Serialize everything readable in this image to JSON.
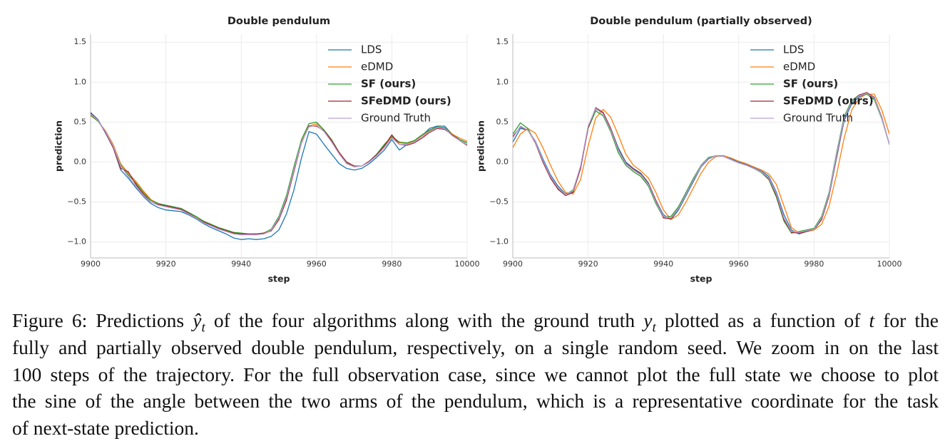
{
  "chart_data": [
    {
      "type": "line",
      "title": "Double pendulum",
      "x_label": "step",
      "y_label": "prediction",
      "x": [
        9900,
        9902,
        9904,
        9906,
        9908,
        9910,
        9912,
        9914,
        9916,
        9918,
        9920,
        9922,
        9924,
        9926,
        9928,
        9930,
        9932,
        9934,
        9936,
        9938,
        9940,
        9942,
        9944,
        9946,
        9948,
        9950,
        9952,
        9954,
        9956,
        9958,
        9960,
        9962,
        9964,
        9966,
        9968,
        9970,
        9972,
        9974,
        9976,
        9978,
        9980,
        9982,
        9984,
        9986,
        9988,
        9990,
        9992,
        9994,
        9996,
        9998,
        10000
      ],
      "series": [
        {
          "name": "LDS",
          "color": "#1f77b4",
          "bold": false,
          "values": [
            0.62,
            0.53,
            0.36,
            0.18,
            -0.1,
            -0.2,
            -0.32,
            -0.43,
            -0.52,
            -0.57,
            -0.6,
            -0.61,
            -0.62,
            -0.66,
            -0.71,
            -0.77,
            -0.82,
            -0.86,
            -0.9,
            -0.95,
            -0.97,
            -0.96,
            -0.97,
            -0.96,
            -0.93,
            -0.85,
            -0.65,
            -0.35,
            0.05,
            0.38,
            0.35,
            0.22,
            0.1,
            -0.02,
            -0.08,
            -0.1,
            -0.08,
            -0.02,
            0.06,
            0.15,
            0.28,
            0.15,
            0.22,
            0.25,
            0.33,
            0.42,
            0.45,
            0.45,
            0.35,
            0.28,
            0.24
          ]
        },
        {
          "name": "eDMD",
          "color": "#ff7f0e",
          "bold": false,
          "values": [
            0.58,
            0.51,
            0.39,
            0.22,
            -0.02,
            -0.14,
            -0.24,
            -0.36,
            -0.47,
            -0.52,
            -0.55,
            -0.57,
            -0.59,
            -0.64,
            -0.69,
            -0.74,
            -0.79,
            -0.83,
            -0.86,
            -0.89,
            -0.9,
            -0.91,
            -0.91,
            -0.9,
            -0.86,
            -0.72,
            -0.46,
            -0.1,
            0.26,
            0.45,
            0.48,
            0.4,
            0.27,
            0.11,
            -0.02,
            -0.06,
            -0.05,
            0.0,
            0.09,
            0.2,
            0.31,
            0.24,
            0.23,
            0.26,
            0.33,
            0.39,
            0.44,
            0.43,
            0.35,
            0.3,
            0.26
          ]
        },
        {
          "name": "SF (ours)",
          "color": "#2ca02c",
          "bold": true,
          "values": [
            0.59,
            0.51,
            0.38,
            0.2,
            -0.04,
            -0.16,
            -0.26,
            -0.38,
            -0.48,
            -0.52,
            -0.54,
            -0.56,
            -0.58,
            -0.63,
            -0.68,
            -0.74,
            -0.78,
            -0.82,
            -0.85,
            -0.88,
            -0.89,
            -0.9,
            -0.9,
            -0.89,
            -0.84,
            -0.68,
            -0.42,
            -0.06,
            0.28,
            0.48,
            0.5,
            0.4,
            0.28,
            0.12,
            -0.01,
            -0.06,
            -0.05,
            0.01,
            0.1,
            0.22,
            0.32,
            0.25,
            0.24,
            0.27,
            0.34,
            0.4,
            0.44,
            0.43,
            0.34,
            0.28,
            0.24
          ]
        },
        {
          "name": "SFeDMD (ours)",
          "color": "#a4262c",
          "bold": true,
          "values": [
            0.61,
            0.52,
            0.37,
            0.18,
            -0.08,
            -0.12,
            -0.28,
            -0.4,
            -0.5,
            -0.53,
            -0.55,
            -0.57,
            -0.59,
            -0.64,
            -0.7,
            -0.75,
            -0.79,
            -0.83,
            -0.86,
            -0.89,
            -0.9,
            -0.9,
            -0.9,
            -0.89,
            -0.86,
            -0.72,
            -0.48,
            -0.12,
            0.24,
            0.45,
            0.45,
            0.39,
            0.27,
            0.12,
            0.0,
            -0.05,
            -0.05,
            0.01,
            0.09,
            0.2,
            0.34,
            0.22,
            0.21,
            0.24,
            0.3,
            0.37,
            0.42,
            0.41,
            0.34,
            0.27,
            0.21
          ]
        },
        {
          "name": "Ground Truth",
          "color": "#b9a0db",
          "bold": false,
          "values": [
            0.6,
            0.52,
            0.38,
            0.2,
            -0.05,
            -0.18,
            -0.3,
            -0.42,
            -0.5,
            -0.54,
            -0.56,
            -0.58,
            -0.6,
            -0.65,
            -0.7,
            -0.76,
            -0.8,
            -0.84,
            -0.87,
            -0.9,
            -0.91,
            -0.91,
            -0.91,
            -0.9,
            -0.85,
            -0.7,
            -0.45,
            -0.1,
            0.25,
            0.44,
            0.46,
            0.38,
            0.25,
            0.1,
            -0.02,
            -0.06,
            -0.05,
            0.0,
            0.08,
            0.18,
            0.3,
            0.22,
            0.22,
            0.25,
            0.32,
            0.38,
            0.43,
            0.42,
            0.33,
            0.27,
            0.22
          ]
        }
      ],
      "xlim": [
        9900,
        10000
      ],
      "xticks": [
        9900,
        9920,
        9940,
        9960,
        9980,
        10000
      ],
      "ylim": [
        -1.2,
        1.6
      ],
      "yticks": [
        {
          "value": -1,
          "label": "−1.0"
        },
        {
          "value": -0.5,
          "label": "−0.5"
        },
        {
          "value": 0,
          "label": "0.0"
        },
        0.5,
        {
          "value": 1,
          "label": "1.0"
        },
        1.5
      ],
      "grid": true,
      "legend": "upper right"
    },
    {
      "type": "line",
      "title": "Double pendulum (partially observed)",
      "x_label": "step",
      "y_label": "prediction",
      "x": [
        9900,
        9902,
        9904,
        9906,
        9908,
        9910,
        9912,
        9914,
        9916,
        9918,
        9920,
        9922,
        9924,
        9926,
        9928,
        9930,
        9932,
        9934,
        9936,
        9938,
        9940,
        9942,
        9944,
        9946,
        9948,
        9950,
        9952,
        9954,
        9956,
        9958,
        9960,
        9962,
        9964,
        9966,
        9968,
        9970,
        9972,
        9974,
        9976,
        9978,
        9980,
        9982,
        9984,
        9986,
        9988,
        9990,
        9992,
        9994,
        9996,
        9998,
        10000
      ],
      "series": [
        {
          "name": "LDS",
          "color": "#1f77b4",
          "bold": false,
          "values": [
            0.25,
            0.42,
            0.4,
            0.26,
            0.04,
            -0.16,
            -0.3,
            -0.4,
            -0.37,
            -0.08,
            0.44,
            0.66,
            0.62,
            0.42,
            0.18,
            0.0,
            -0.08,
            -0.14,
            -0.26,
            -0.48,
            -0.66,
            -0.72,
            -0.6,
            -0.42,
            -0.24,
            -0.06,
            0.04,
            0.08,
            0.08,
            0.04,
            0.0,
            -0.03,
            -0.07,
            -0.11,
            -0.18,
            -0.38,
            -0.66,
            -0.85,
            -0.9,
            -0.87,
            -0.85,
            -0.72,
            -0.42,
            0.06,
            0.52,
            0.73,
            0.82,
            0.85,
            0.79,
            0.55,
            0.22
          ]
        },
        {
          "name": "eDMD",
          "color": "#ff7f0e",
          "bold": false,
          "values": [
            0.18,
            0.35,
            0.42,
            0.36,
            0.18,
            -0.04,
            -0.24,
            -0.38,
            -0.4,
            -0.22,
            0.2,
            0.55,
            0.66,
            0.56,
            0.34,
            0.1,
            -0.04,
            -0.11,
            -0.2,
            -0.38,
            -0.6,
            -0.72,
            -0.66,
            -0.5,
            -0.32,
            -0.14,
            0.0,
            0.07,
            0.08,
            0.05,
            0.01,
            -0.02,
            -0.06,
            -0.1,
            -0.15,
            -0.28,
            -0.55,
            -0.82,
            -0.89,
            -0.87,
            -0.85,
            -0.78,
            -0.55,
            -0.15,
            0.3,
            0.65,
            0.8,
            0.85,
            0.85,
            0.65,
            0.35
          ]
        },
        {
          "name": "SF (ours)",
          "color": "#2ca02c",
          "bold": true,
          "values": [
            0.35,
            0.49,
            0.42,
            0.24,
            0.0,
            -0.19,
            -0.33,
            -0.41,
            -0.35,
            -0.06,
            0.42,
            0.64,
            0.58,
            0.38,
            0.12,
            -0.04,
            -0.12,
            -0.18,
            -0.3,
            -0.52,
            -0.69,
            -0.68,
            -0.56,
            -0.38,
            -0.2,
            -0.04,
            0.06,
            0.08,
            0.07,
            0.03,
            -0.01,
            -0.04,
            -0.08,
            -0.13,
            -0.22,
            -0.44,
            -0.74,
            -0.89,
            -0.87,
            -0.85,
            -0.83,
            -0.68,
            -0.38,
            0.12,
            0.57,
            0.77,
            0.84,
            0.85,
            0.78,
            0.54,
            0.22
          ]
        },
        {
          "name": "SFeDMD (ours)",
          "color": "#a4262c",
          "bold": true,
          "values": [
            0.32,
            0.44,
            0.4,
            0.24,
            0.0,
            -0.2,
            -0.34,
            -0.42,
            -0.38,
            -0.08,
            0.43,
            0.68,
            0.62,
            0.42,
            0.16,
            -0.01,
            -0.09,
            -0.15,
            -0.27,
            -0.48,
            -0.7,
            -0.71,
            -0.58,
            -0.4,
            -0.22,
            -0.05,
            0.05,
            0.08,
            0.07,
            0.03,
            -0.01,
            -0.04,
            -0.08,
            -0.12,
            -0.21,
            -0.42,
            -0.72,
            -0.88,
            -0.89,
            -0.87,
            -0.84,
            -0.72,
            -0.42,
            0.08,
            0.54,
            0.75,
            0.84,
            0.87,
            0.81,
            0.56,
            0.22
          ]
        },
        {
          "name": "Ground Truth",
          "color": "#b9a0db",
          "bold": false,
          "values": [
            0.3,
            0.45,
            0.4,
            0.25,
            0.02,
            -0.18,
            -0.32,
            -0.41,
            -0.36,
            -0.05,
            0.45,
            0.67,
            0.6,
            0.4,
            0.15,
            -0.02,
            -0.1,
            -0.16,
            -0.28,
            -0.5,
            -0.68,
            -0.7,
            -0.58,
            -0.4,
            -0.22,
            -0.05,
            0.05,
            0.08,
            0.07,
            0.03,
            -0.01,
            -0.04,
            -0.08,
            -0.12,
            -0.2,
            -0.4,
            -0.7,
            -0.87,
            -0.88,
            -0.86,
            -0.84,
            -0.7,
            -0.4,
            0.1,
            0.55,
            0.75,
            0.83,
            0.86,
            0.8,
            0.55,
            0.22
          ]
        }
      ],
      "xlim": [
        9900,
        10000
      ],
      "xticks": [
        9900,
        9920,
        9940,
        9960,
        9980,
        10000
      ],
      "ylim": [
        -1.2,
        1.6
      ],
      "yticks": [
        {
          "value": -1,
          "label": "−1.0"
        },
        {
          "value": -0.5,
          "label": "−0.5"
        },
        {
          "value": 0,
          "label": "0.0"
        },
        0.5,
        {
          "value": 1,
          "label": "1.0"
        },
        1.5
      ],
      "grid": true,
      "legend": "upper right"
    }
  ],
  "caption": {
    "lines": [
      [
        {
          "text": "Figure 6: Predictions "
        },
        {
          "math": "ŷ",
          "sub": "t"
        },
        {
          "text": " of the four algorithms along with the ground truth "
        },
        {
          "math": "y",
          "sub": "t"
        },
        {
          "text": " plotted as a function of "
        },
        {
          "math": "t"
        },
        {
          "text": " for the"
        }
      ],
      [
        {
          "text": "fully and partially observed double pendulum, respectively, on a single random seed. We zoom in on the last"
        }
      ],
      [
        {
          "text": "100 steps of the trajectory. For the full observation case, since we cannot plot the full state we choose to plot"
        }
      ],
      [
        {
          "text": "the sine of the angle between the two arms of the pendulum, which is a representative coordinate for the task"
        }
      ],
      [
        {
          "text": "of next-state prediction."
        }
      ]
    ]
  }
}
